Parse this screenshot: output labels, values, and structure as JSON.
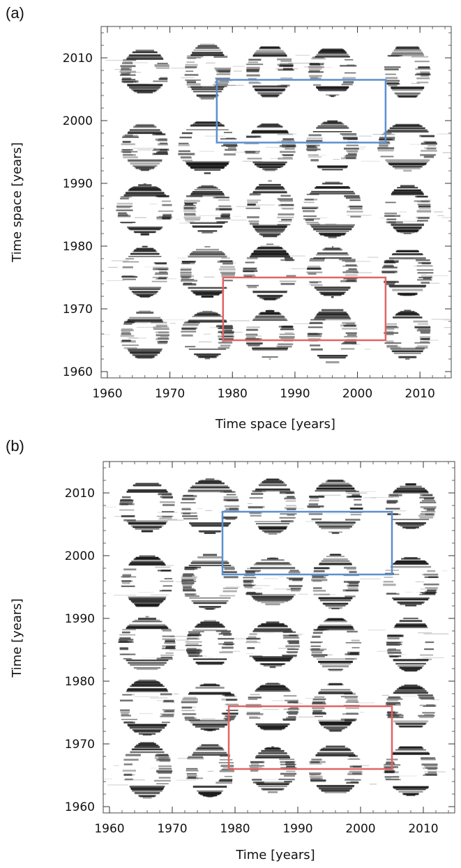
{
  "figure": {
    "colors": {
      "blue_box": "#5b8fd0",
      "red_box": "#e26464",
      "ink": "#1a1a1a"
    }
  },
  "chart_data": [
    {
      "type": "heatmap",
      "panel_label": "(a)",
      "xlabel": "Time space [years]",
      "ylabel": "Time space [years]",
      "xlim": [
        1959,
        2015
      ],
      "ylim": [
        1959,
        2015
      ],
      "xticks": [
        1960,
        1970,
        1980,
        1990,
        2000,
        2010
      ],
      "yticks": [
        1960,
        1970,
        1980,
        1990,
        2000,
        2010
      ],
      "colormap": "grayscale",
      "dense_blob_centers": [
        1966,
        1976,
        1986,
        1996,
        2008
      ],
      "highlight_boxes": [
        {
          "color": "blue",
          "x": [
            1977.5,
            2004.5
          ],
          "y": [
            1996.5,
            2006.5
          ]
        },
        {
          "color": "red",
          "x": [
            1978.5,
            2004.5
          ],
          "y": [
            1965,
            1975
          ]
        }
      ]
    },
    {
      "type": "heatmap",
      "panel_label": "(b)",
      "xlabel": "Time [years]",
      "ylabel": "Time [years]",
      "xlim": [
        1959,
        2015
      ],
      "ylim": [
        1959,
        2015
      ],
      "xticks": [
        1960,
        1970,
        1980,
        1990,
        2000,
        2010
      ],
      "yticks": [
        1960,
        1970,
        1980,
        1990,
        2000,
        2010
      ],
      "colormap": "grayscale",
      "dense_blob_centers": [
        1966,
        1976,
        1986,
        1996,
        2008
      ],
      "highlight_boxes": [
        {
          "color": "blue",
          "x": [
            1978,
            2005
          ],
          "y": [
            1997,
            2007
          ]
        },
        {
          "color": "red",
          "x": [
            1979,
            2005
          ],
          "y": [
            1966,
            1976
          ]
        }
      ]
    }
  ]
}
